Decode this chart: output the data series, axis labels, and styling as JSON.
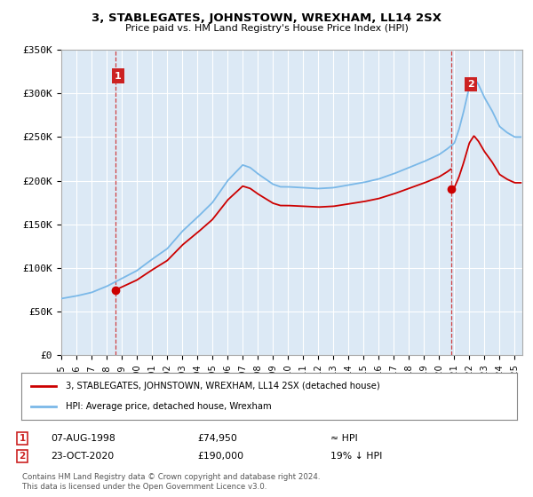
{
  "title": "3, STABLEGATES, JOHNSTOWN, WREXHAM, LL14 2SX",
  "subtitle": "Price paid vs. HM Land Registry's House Price Index (HPI)",
  "ylim": [
    0,
    350000
  ],
  "xlim_start": 1995.0,
  "xlim_end": 2025.5,
  "bg_color": "#dce9f5",
  "grid_color": "#ffffff",
  "sale1_x": 1998.59,
  "sale1_y": 74950,
  "sale2_x": 2020.81,
  "sale2_y": 190000,
  "sale1_label": "1",
  "sale2_label": "2",
  "legend_line1": "3, STABLEGATES, JOHNSTOWN, WREXHAM, LL14 2SX (detached house)",
  "legend_line2": "HPI: Average price, detached house, Wrexham",
  "table_row1_date": "07-AUG-1998",
  "table_row1_price": "£74,950",
  "table_row1_hpi": "≈ HPI",
  "table_row2_date": "23-OCT-2020",
  "table_row2_price": "£190,000",
  "table_row2_hpi": "19% ↓ HPI",
  "footer": "Contains HM Land Registry data © Crown copyright and database right 2024.\nThis data is licensed under the Open Government Licence v3.0.",
  "line_color_sale": "#cc0000",
  "line_color_hpi": "#7ab8e8",
  "marker_color": "#cc0000",
  "annot_box_color": "#cc2222",
  "dashed_line_color": "#cc2222",
  "hpi_anchors_x": [
    1995,
    1996,
    1997,
    1998,
    1999,
    2000,
    2001,
    2002,
    2003,
    2004,
    2005,
    2006,
    2007,
    2007.5,
    2008,
    2008.5,
    2009,
    2009.5,
    2010,
    2011,
    2012,
    2013,
    2014,
    2015,
    2016,
    2017,
    2018,
    2019,
    2020,
    2020.5,
    2021,
    2021.3,
    2021.6,
    2022,
    2022.3,
    2022.6,
    2023,
    2023.5,
    2024,
    2024.5,
    2025
  ],
  "hpi_anchors_y": [
    65000,
    68000,
    72000,
    79000,
    88000,
    97000,
    110000,
    122000,
    142000,
    158000,
    175000,
    200000,
    218000,
    215000,
    208000,
    202000,
    196000,
    193000,
    193000,
    192000,
    191000,
    192000,
    195000,
    198000,
    202000,
    208000,
    215000,
    222000,
    230000,
    236000,
    243000,
    258000,
    278000,
    308000,
    318000,
    310000,
    295000,
    280000,
    262000,
    255000,
    250000
  ]
}
